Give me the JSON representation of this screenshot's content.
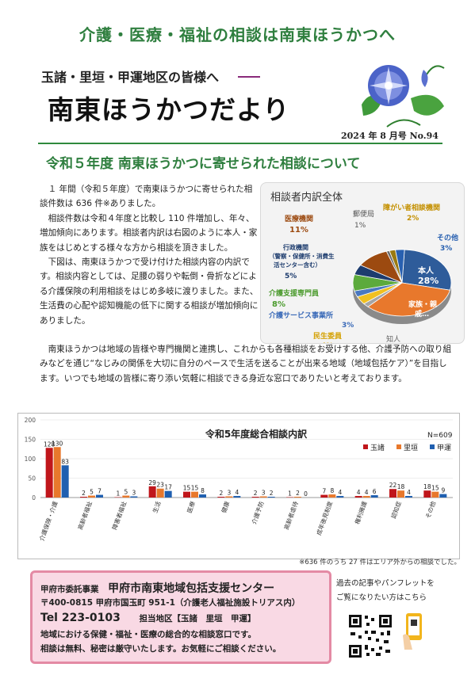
{
  "header": {
    "banner": "介護・医療・福祉の相談は南東ほうかつへ",
    "sub_banner": "玉諸・里垣・甲運地区の皆様へ",
    "title": "南東ほうかつだより",
    "issue": "2024 年 8 月号 No.94"
  },
  "section_title": "令和５年度 南東ほうかつに寄せられた相談について",
  "body": {
    "p1": "１ 年間（令和５年度）で南東ほうかつに寄せられた相談件数は 636 件※ありました。",
    "p2": "相談件数は令和４年度と比較し 110 件増加し、年々、増加傾向にあります。相談者内訳は右図のように本人・家族をはじめとする様々な方から相談を頂きました。",
    "p3": "下図は、南東ほうかつで受け付けた相談内容の内訳です。相談内容としては、足腰の弱りや転倒・骨折などによる介護保険の利用相談をはじめ多岐に渡りました。また、生活費の心配や認知機能の低下に関する相談が増加傾向にありました。",
    "p4": "南東ほうかつは地域の皆様や専門機関と連携し、これからも各種相談をお受けする他、介護予防への取り組みなどを通じ“なじみの関係を大切に自分のペースで生活を送ることが出来る地域（地域包括ケア）”を目指します。いつでも地域の皆様に寄り添い気軽に相談できる身近な窓口でありたいと考えております。"
  },
  "chart_data": [
    {
      "type": "pie",
      "title": "相談者内訳全体",
      "slices": [
        {
          "label": "本人",
          "value": 28,
          "color": "#2e5c9a"
        },
        {
          "label": "家族・親戚…",
          "value": 34,
          "color": "#e8782c"
        },
        {
          "label": "知人",
          "value": 2,
          "color": "#a5a5a5"
        },
        {
          "label": "民生委員",
          "value": 4,
          "color": "#f0c020"
        },
        {
          "label": "介護サービス事業所",
          "value": 3,
          "color": "#4a78c0"
        },
        {
          "label": "介護支援専門員",
          "value": 8,
          "color": "#5caa3c"
        },
        {
          "label": "行政機関（警察・保健所・消費生活センター含む）",
          "value": 5,
          "color": "#1d3c6e"
        },
        {
          "label": "医療機関",
          "value": 11,
          "color": "#9c4a10"
        },
        {
          "label": "郵便局",
          "value": 1,
          "color": "#6a6a6a"
        },
        {
          "label": "障がい者相談機関",
          "value": 2,
          "color": "#9a7a10"
        },
        {
          "label": "その他",
          "value": 3,
          "color": "#2860b0"
        }
      ],
      "labels_display": [
        {
          "name": "本人",
          "pct": "28%"
        },
        {
          "name": "家族・親\n戚…",
          "pct": ""
        },
        {
          "name": "知人",
          "pct": "2%"
        },
        {
          "name": "民生委員",
          "pct": "4%"
        },
        {
          "name": "介護サービス事業所",
          "pct": "3%"
        },
        {
          "name": "介護支援専門員",
          "pct": "8%"
        },
        {
          "name": "行政機関\n（警察・保健所・消費生\n活センター含む）",
          "pct": "5%"
        },
        {
          "name": "医療機関",
          "pct": "11%"
        },
        {
          "name": "郵便局",
          "pct": "1%"
        },
        {
          "name": "障がい者相談機関",
          "pct": "2%"
        },
        {
          "name": "その他",
          "pct": "3%"
        }
      ]
    },
    {
      "type": "bar",
      "title": "令和5年度総合相談内訳",
      "note": "N=609",
      "categories": [
        "介護保険・介護",
        "高齢者福祉",
        "障害者福祉",
        "生活",
        "医療",
        "健康",
        "介護予防",
        "高齢者虐待",
        "成年後見制度",
        "権利擁護",
        "認知症",
        "その他"
      ],
      "series": [
        {
          "name": "玉諸",
          "color": "#c0161b",
          "values": [
            128,
            2,
            1,
            29,
            15,
            2,
            2,
            1,
            7,
            4,
            22,
            18
          ]
        },
        {
          "name": "里垣",
          "color": "#e8782c",
          "values": [
            130,
            5,
            5,
            23,
            15,
            3,
            3,
            2,
            8,
            4,
            18,
            15
          ]
        },
        {
          "name": "甲運",
          "color": "#1f5fb0",
          "values": [
            83,
            7,
            3,
            17,
            8,
            4,
            2,
            0,
            4,
            6,
            4,
            9
          ]
        }
      ],
      "ylim": [
        0,
        200
      ],
      "yticks": [
        "0",
        "50",
        "100",
        "150",
        "200"
      ]
    }
  ],
  "footnote": "※636 件のうち 27 件はエリア外からの相談でした。",
  "center": {
    "line1a": "甲府市委託事業",
    "line1b": "甲府市南東地域包括支援センター",
    "line2": "〒400-0815 甲府市国玉町 951-1（介護老人福祉施設トリアス内）",
    "line3a": "Tel 223-0103",
    "line3b": "担当地区【玉諸　里垣　甲運】",
    "line4": "地域における保健・福祉・医療の総合的な相談窓口です。",
    "line5": "相談は無料、秘密は厳守いたします。お気軽にご相談ください。"
  },
  "qr": {
    "text1": "過去の記事やパンフレットを",
    "text2": "ご覧になりたい方はこちら"
  }
}
